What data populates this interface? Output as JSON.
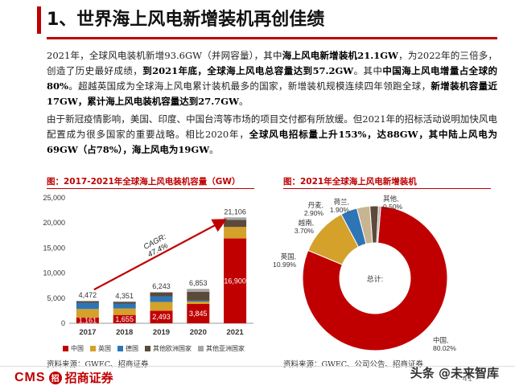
{
  "header": {
    "title": "1、世界海上风电新增装机再创佳绩"
  },
  "paragraphs": {
    "p1": [
      {
        "t": "2021年，全球风电装机新增93.6GW（并网容量），其中",
        "b": false
      },
      {
        "t": "海上风电新增装机21.1GW",
        "b": true
      },
      {
        "t": "，为2022年的三倍多，创造了历史最好成绩，",
        "b": false
      },
      {
        "t": "到2021年底，全球海上风电总容量达到57.2GW",
        "b": true
      },
      {
        "t": "。其中",
        "b": false
      },
      {
        "t": "中国海上风电增量占全球的80%",
        "b": true
      },
      {
        "t": "。超越英国成为全球海上风电累计装机最多的国家，新增装机规模连续四年领跑全球，",
        "b": false
      },
      {
        "t": "新增装机容量近17GW，累计海上风电装机容量达到27.7GW",
        "b": true
      },
      {
        "t": "。",
        "b": false
      }
    ],
    "p2": [
      {
        "t": "由于新冠疫情影响，美国、印度、中国台湾等市场的项目交付都有所放缓。但2021年的招标活动说明加快风电配置成为很多国家的重要战略。相比2020年，",
        "b": false
      },
      {
        "t": "全球风电招标量上升153%，达88GW，其中陆上风电为69GW（占78%），海上风电为19GW",
        "b": true
      },
      {
        "t": "。",
        "b": false
      }
    ]
  },
  "bar_chart": {
    "caption": "图：2017-2021年全球海上风电装机容量（GW）",
    "source": "资料来源：GWEC、招商证券",
    "cagr_label": "CAGR:\n47.4%",
    "legend": [
      {
        "name": "中国",
        "color": "#c00000"
      },
      {
        "name": "英国",
        "color": "#d4a12a"
      },
      {
        "name": "德国",
        "color": "#2e75b6"
      },
      {
        "name": "其他欧洲国家",
        "color": "#5b4a3a"
      },
      {
        "name": "其他亚洲国家",
        "color": "#a6a6a6"
      }
    ]
  },
  "donut_chart": {
    "caption": "图：2021年全球海上风电新增装机",
    "source": "资料来源：GWEC、公司公告、招商证券",
    "center_label": "总计:"
  },
  "chart_data": [
    {
      "type": "bar",
      "stacked": true,
      "title": "图：2017-2021年全球海上风电装机容量（GW）",
      "categories": [
        "2017",
        "2018",
        "2019",
        "2020",
        "2021"
      ],
      "ylim": [
        0,
        25000
      ],
      "yticks": [
        "0",
        "5,000",
        "10,000",
        "15,000",
        "20,000",
        "25,000"
      ],
      "ytick_values": [
        0,
        5000,
        10000,
        15000,
        20000,
        25000
      ],
      "totals": [
        4472,
        4351,
        6243,
        6853,
        21106
      ],
      "total_labels": [
        "4,472",
        "4,351",
        "6,243",
        "6,853",
        "21,106"
      ],
      "series": [
        {
          "name": "中国",
          "values": [
            1161,
            1655,
            2493,
            3845,
            16900
          ],
          "labels": [
            "1,161",
            "1,655",
            "2,493",
            "3,845",
            "16,900"
          ]
        },
        {
          "name": "英国",
          "values": [
            1680,
            1300,
            1760,
            480,
            2300
          ]
        },
        {
          "name": "德国",
          "values": [
            1250,
            970,
            1110,
            230,
            0
          ]
        },
        {
          "name": "其他欧洲国家",
          "values": [
            300,
            350,
            730,
            1700,
            1400
          ]
        },
        {
          "name": "其他亚洲国家",
          "values": [
            81,
            76,
            150,
            598,
            506
          ]
        }
      ],
      "legend_position": "bottom"
    },
    {
      "type": "pie",
      "donut": true,
      "title": "图：2021年全球海上风电新增装机",
      "center_label": "总计:",
      "slices": [
        {
          "label": "中国,80.02%",
          "value": 80.02,
          "color": "#c00000"
        },
        {
          "label": "英国,10.99%",
          "value": 10.99,
          "color": "#d4a12a"
        },
        {
          "label": "越南,3.70%",
          "value": 3.7,
          "color": "#2e75b6"
        },
        {
          "label": "丹麦,2.90%",
          "value": 2.9,
          "color": "#c8b491"
        },
        {
          "label": "荷兰,1.90%",
          "value": 1.9,
          "color": "#5b4a3a"
        },
        {
          "label": "其他,0.50%",
          "value": 0.5,
          "color": "#a6a6a6"
        }
      ]
    }
  ],
  "footer": {
    "logo_text": "CMS",
    "logo_mark": "招",
    "logo_cn": "招商证券",
    "watermark": "头条 @未来智库",
    "page_number": "- 41 -"
  }
}
